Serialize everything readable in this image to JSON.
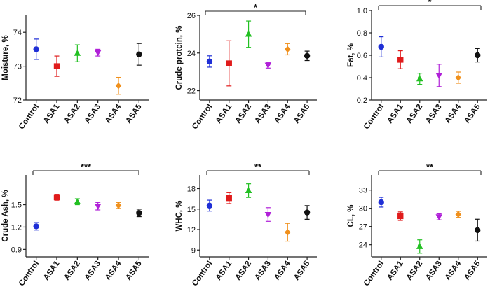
{
  "chart_data": [
    {
      "type": "scatter",
      "title": "",
      "xlabel": "",
      "ylabel": "Moisture, %",
      "categories": [
        "Control",
        "ASA1",
        "ASA2",
        "ASA3",
        "ASA4",
        "ASA5"
      ],
      "values": [
        73.5,
        73.0,
        73.38,
        73.4,
        72.42,
        73.35
      ],
      "errors": [
        0.3,
        0.3,
        0.25,
        0.1,
        0.25,
        0.32
      ],
      "ylim": [
        72,
        74.5
      ],
      "yticks": [
        "72",
        "73",
        "74"
      ],
      "significance": ""
    },
    {
      "type": "scatter",
      "title": "",
      "xlabel": "",
      "ylabel": "Crude protein, %",
      "categories": [
        "Control",
        "ASA1",
        "ASA2",
        "ASA3",
        "ASA4",
        "ASA5"
      ],
      "values": [
        23.55,
        23.45,
        25.0,
        23.35,
        24.2,
        23.85
      ],
      "errors": [
        0.3,
        1.2,
        0.7,
        0.15,
        0.3,
        0.25
      ],
      "ylim": [
        21.5,
        26.0
      ],
      "yticks": [
        "22",
        "24",
        "26"
      ],
      "significance": "*"
    },
    {
      "type": "scatter",
      "title": "",
      "xlabel": "",
      "ylabel": "Fat, %",
      "categories": [
        "Control",
        "ASA1",
        "ASA2",
        "ASA3",
        "ASA4",
        "ASA5"
      ],
      "values": [
        0.675,
        0.56,
        0.39,
        0.42,
        0.4,
        0.6
      ],
      "errors": [
        0.09,
        0.08,
        0.05,
        0.1,
        0.05,
        0.06
      ],
      "ylim": [
        0.2,
        1.0
      ],
      "yticks": [
        "0.2",
        "0.4",
        "0.6",
        "0.8",
        "1.0"
      ],
      "significance": "*"
    },
    {
      "type": "scatter",
      "title": "",
      "xlabel": "",
      "ylabel": "Crude Ash, %",
      "categories": [
        "Control",
        "ASA1",
        "ASA2",
        "ASA3",
        "ASA4",
        "ASA5"
      ],
      "values": [
        1.21,
        1.6,
        1.54,
        1.48,
        1.49,
        1.39
      ],
      "errors": [
        0.05,
        0.04,
        0.04,
        0.05,
        0.04,
        0.05
      ],
      "ylim": [
        0.8,
        1.9
      ],
      "yticks": [
        "0.9",
        "1.2",
        "1.5"
      ],
      "significance": "***"
    },
    {
      "type": "scatter",
      "title": "",
      "xlabel": "",
      "ylabel": "WHC, %",
      "categories": [
        "Control",
        "ASA1",
        "ASA2",
        "ASA3",
        "ASA4",
        "ASA5"
      ],
      "values": [
        15.5,
        16.6,
        17.7,
        14.2,
        11.6,
        14.5
      ],
      "errors": [
        0.8,
        0.8,
        1.0,
        1.0,
        1.3,
        1.0
      ],
      "ylim": [
        8.0,
        20.0
      ],
      "yticks": [
        "9",
        "12",
        "15",
        "18"
      ],
      "significance": "**"
    },
    {
      "type": "scatter",
      "title": "",
      "xlabel": "",
      "ylabel": "CL, %",
      "categories": [
        "Control",
        "ASA1",
        "ASA2",
        "ASA3",
        "ASA4",
        "ASA5"
      ],
      "values": [
        31.0,
        28.7,
        23.7,
        28.6,
        29.0,
        26.4
      ],
      "errors": [
        0.8,
        0.7,
        1.1,
        0.5,
        0.5,
        1.8
      ],
      "ylim": [
        22.0,
        35.5
      ],
      "yticks": [
        "24",
        "27",
        "30",
        "33"
      ],
      "significance": "**"
    }
  ],
  "colors": [
    "#1f2fd6",
    "#e01b1b",
    "#22c022",
    "#b020d8",
    "#f0901c",
    "#111111"
  ],
  "marker_shapes": [
    "circle",
    "square",
    "triangle-up",
    "triangle-down",
    "diamond",
    "circle"
  ]
}
